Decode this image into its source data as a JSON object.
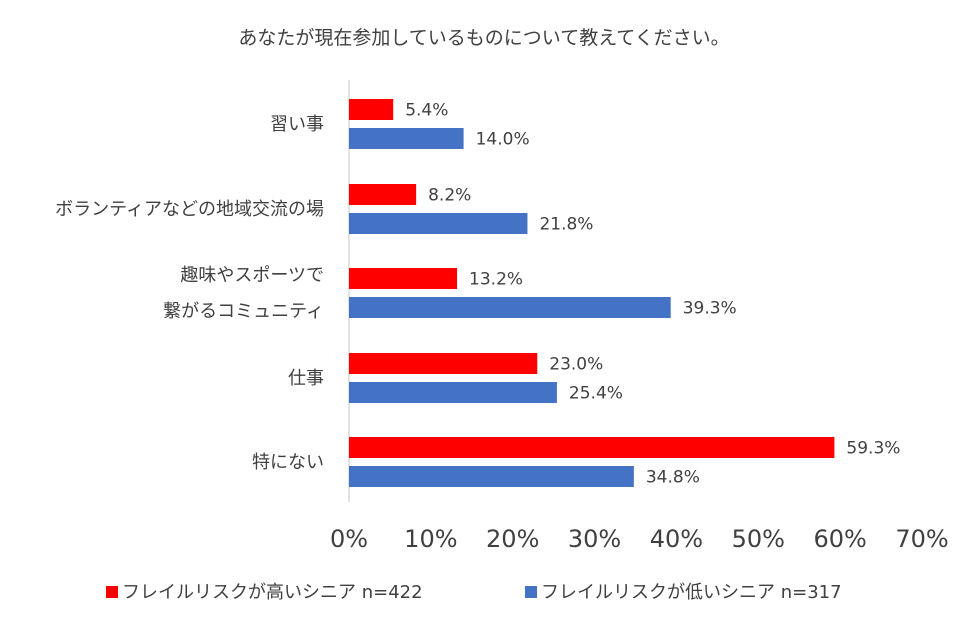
{
  "chart_data": {
    "type": "bar",
    "orientation": "horizontal",
    "title": "あなたが現在参加しているものについて教えてください。",
    "categories": [
      [
        "習い事"
      ],
      [
        "ボランティアなどの地域交流の場"
      ],
      [
        "趣味やスポーツで",
        "繋がるコミュニティ"
      ],
      [
        "仕事"
      ],
      [
        "特にない"
      ]
    ],
    "series": [
      {
        "name": "フレイルリスクが高いシニア n=422",
        "color": "#ff0000",
        "values": [
          5.4,
          8.2,
          13.2,
          23.0,
          59.3
        ]
      },
      {
        "name": "フレイルリスクが低いシニア n=317",
        "color": "#4472c4",
        "values": [
          14.0,
          21.8,
          39.3,
          25.4,
          34.8
        ]
      }
    ],
    "value_labels": [
      [
        "5.4%",
        "8.2%",
        "13.2%",
        "23.0%",
        "59.3%"
      ],
      [
        "14.0%",
        "21.8%",
        "39.3%",
        "25.4%",
        "34.8%"
      ]
    ],
    "xlim": [
      0,
      70
    ],
    "xticks": [
      "0%",
      "10%",
      "20%",
      "30%",
      "40%",
      "50%",
      "60%",
      "70%"
    ],
    "legend_position": "bottom",
    "grid": false
  }
}
